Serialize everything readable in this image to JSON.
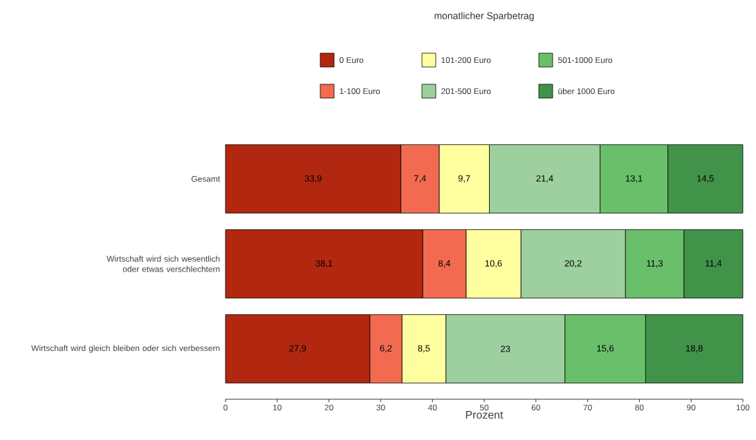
{
  "chart_data": {
    "type": "bar",
    "orientation": "horizontal",
    "stacked": true,
    "legend_title": "monatlicher Sparbetrag",
    "xlabel": "Prozent",
    "legend": "top",
    "categories": [
      "Gesamt",
      "Wirtschaft wird sich wesentlich oder etwas verschlechtern",
      "Wirtschaft wird gleich bleiben oder sich verbessern"
    ],
    "xlim": [
      0,
      100
    ],
    "xticks": [
      0,
      10,
      20,
      30,
      40,
      50,
      60,
      70,
      80,
      90,
      100
    ],
    "grid": false,
    "series": [
      {
        "name": "0 Euro",
        "color": "#b22710",
        "values": [
          33.9,
          38.1,
          27.9
        ],
        "value_labels": [
          "33,9",
          "38,1",
          "27,9"
        ]
      },
      {
        "name": "1-100 Euro",
        "color": "#f26b50",
        "values": [
          7.4,
          8.4,
          6.2
        ],
        "value_labels": [
          "7,4",
          "8,4",
          "6,2"
        ]
      },
      {
        "name": "101-200 Euro",
        "color": "#ffffa0",
        "values": [
          9.7,
          10.6,
          8.5
        ],
        "value_labels": [
          "9,7",
          "10,6",
          "8,5"
        ]
      },
      {
        "name": "201-500 Euro",
        "color": "#9dd09e",
        "values": [
          21.4,
          20.2,
          23
        ],
        "value_labels": [
          "21,4",
          "20,2",
          "23"
        ]
      },
      {
        "name": "501-1000 Euro",
        "color": "#6abf6a",
        "values": [
          13.1,
          11.3,
          15.6
        ],
        "value_labels": [
          "13,1",
          "11,3",
          "15,6"
        ]
      },
      {
        "name": "über 1000 Euro",
        "color": "#41934a",
        "values": [
          14.5,
          11.4,
          18.8
        ],
        "value_labels": [
          "14,5",
          "11,4",
          "18,8"
        ]
      }
    ]
  }
}
